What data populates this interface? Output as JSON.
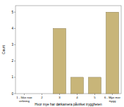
{
  "chart_data": {
    "type": "bar",
    "x_label": "Hvor mye har dørkamera påvirket tryggheten",
    "y_label": "Count",
    "categories": [
      "1 - Ikke noe virkning",
      "2",
      "3",
      "4",
      "5",
      "6 - Mye mer trygg"
    ],
    "values": [
      0,
      0,
      4,
      1,
      1,
      5
    ],
    "color": "#c8b579",
    "ylim": [
      0,
      5.4
    ],
    "yticks": [
      0,
      1,
      2,
      3,
      4,
      5
    ],
    "grid": false
  }
}
